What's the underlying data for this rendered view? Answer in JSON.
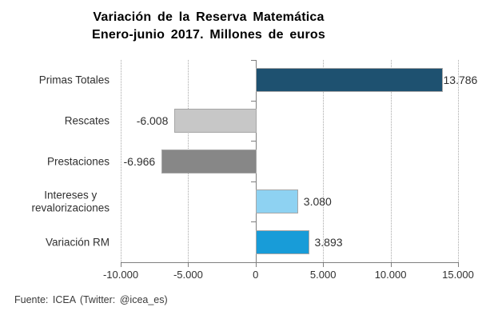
{
  "title": {
    "line1": "Variación  de la Reserva Matemática",
    "line2": "Enero-junio 2017. Millones  de euros"
  },
  "footer": "Fuente: ICEA (Twitter:  @icea_es)",
  "chart_data": {
    "type": "bar",
    "orientation": "horizontal",
    "title": "Variación de la Reserva Matemática Enero-junio 2017. Millones de euros",
    "categories": [
      "Primas Totales",
      "Rescates",
      "Prestaciones",
      "Intereses y\nrevalorizaciones",
      "Variación RM"
    ],
    "values": [
      13786,
      -6008,
      -6966,
      3080,
      3893
    ],
    "value_labels": [
      "13.786",
      "-6.008",
      "-6.966",
      "3.080",
      "3.893"
    ],
    "bar_colors": [
      "#1e5170",
      "#c7c7c7",
      "#878787",
      "#8ed2f2",
      "#189cd8"
    ],
    "xlim": [
      -10000,
      15000
    ],
    "x_ticks": [
      -10000,
      -5000,
      0,
      5000,
      10000,
      15000
    ],
    "x_tick_labels": [
      "-10.000",
      "-5.000",
      "0",
      "5.000",
      "10.000",
      "15.000"
    ],
    "xlabel": "",
    "ylabel": "",
    "grid": "vertical-dotted",
    "legend": "none",
    "axis_color": "#7f7f7f",
    "gridline_color": "#a8a8a8",
    "bar_border_color": "#a6a6a6"
  }
}
